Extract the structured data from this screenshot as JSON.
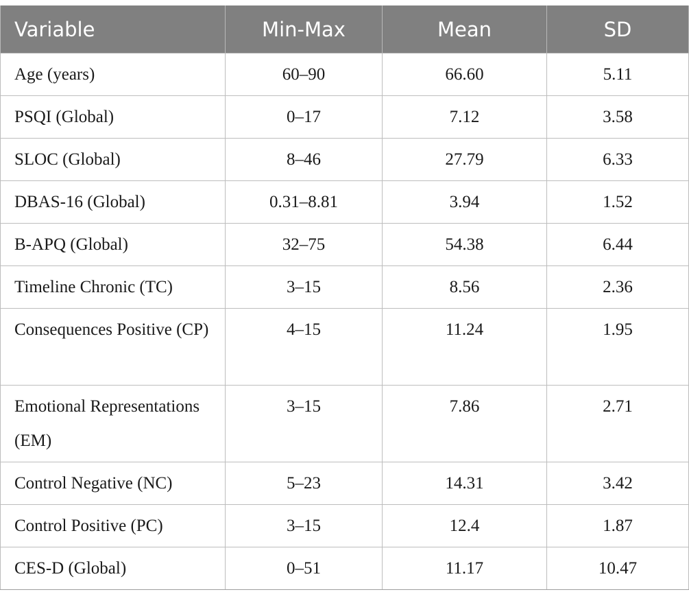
{
  "table": {
    "headers": [
      "Variable",
      "Min-Max",
      "Mean",
      "SD"
    ],
    "rows": [
      {
        "variable": "Age (years)",
        "minmax": "60–90",
        "mean": "66.60",
        "sd": "5.11"
      },
      {
        "variable": "PSQI (Global)",
        "minmax": "0–17",
        "mean": "7.12",
        "sd": "3.58"
      },
      {
        "variable": "SLOC (Global)",
        "minmax": "8–46",
        "mean": "27.79",
        "sd": "6.33"
      },
      {
        "variable": "DBAS-16 (Global)",
        "minmax": "0.31–8.81",
        "mean": "3.94",
        "sd": "1.52"
      },
      {
        "variable": "B-APQ (Global)",
        "minmax": "32–75",
        "mean": "54.38",
        "sd": "6.44"
      },
      {
        "variable": "Timeline Chronic (TC)",
        "minmax": "3–15",
        "mean": "8.56",
        "sd": "2.36"
      },
      {
        "variable": "Consequences Positive (CP)",
        "minmax": "4–15",
        "mean": "11.24",
        "sd": "1.95"
      },
      {
        "variable": "Emotional Representations (EM)",
        "minmax": "3–15",
        "mean": "7.86",
        "sd": "2.71"
      },
      {
        "variable": "Control Negative (NC)",
        "minmax": "5–23",
        "mean": "14.31",
        "sd": "3.42"
      },
      {
        "variable": "Control Positive (PC)",
        "minmax": "3–15",
        "mean": "12.4",
        "sd": "1.87"
      },
      {
        "variable": "CES-D (Global)",
        "minmax": "0–51",
        "mean": "11.17",
        "sd": "10.47"
      }
    ]
  },
  "colors": {
    "header_background": "#808080",
    "header_text": "#ffffff",
    "body_text": "#1a1a1a",
    "grid_line": "#bdbdbd"
  }
}
